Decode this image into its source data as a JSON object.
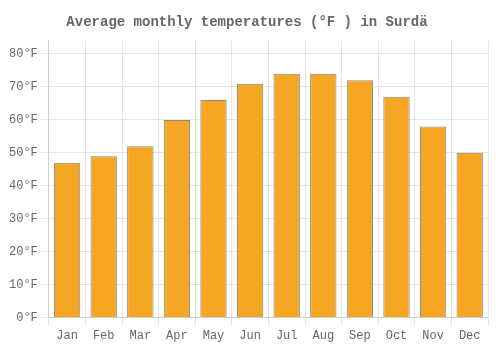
{
  "chart_data": {
    "type": "bar",
    "title": "Average monthly temperatures (°F ) in Surdä",
    "categories": [
      "Jan",
      "Feb",
      "Mar",
      "Apr",
      "May",
      "Jun",
      "Jul",
      "Aug",
      "Sep",
      "Oct",
      "Nov",
      "Dec"
    ],
    "values": [
      47,
      49,
      52,
      60,
      66,
      71,
      74,
      74,
      72,
      67,
      58,
      50
    ],
    "color": "#F5A623",
    "ylim": [
      0,
      84
    ],
    "yticks": [
      {
        "value": 0,
        "label": "0°F"
      },
      {
        "value": 10,
        "label": "10°F"
      },
      {
        "value": 20,
        "label": "20°F"
      },
      {
        "value": 30,
        "label": "30°F"
      },
      {
        "value": 40,
        "label": "40°F"
      },
      {
        "value": 50,
        "label": "50°F"
      },
      {
        "value": 60,
        "label": "60°F"
      },
      {
        "value": 70,
        "label": "70°F"
      },
      {
        "value": 80,
        "label": "80°F"
      }
    ],
    "grid": true
  }
}
